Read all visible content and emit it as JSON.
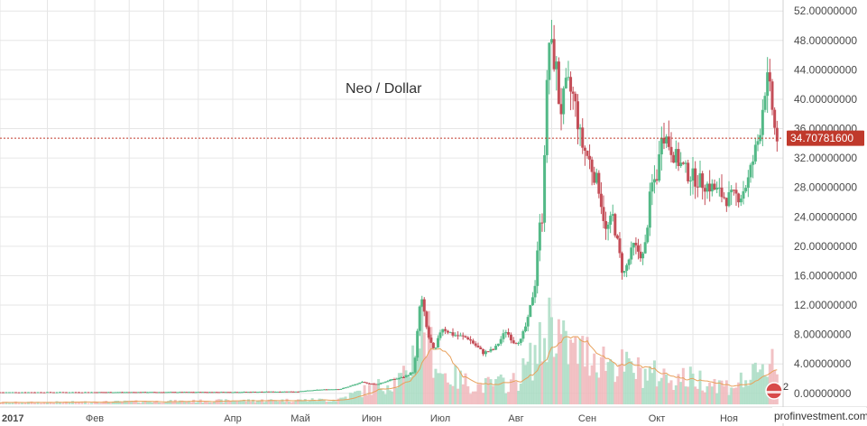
{
  "chart_data": {
    "type": "candlestick",
    "title": "Neo / Dollar",
    "y_axis": {
      "side": "right",
      "range": [
        -1.5,
        53.5
      ],
      "ticks": [
        "52.00000000",
        "48.00000000",
        "44.00000000",
        "40.00000000",
        "36.00000000",
        "32.00000000",
        "28.00000000",
        "24.00000000",
        "20.00000000",
        "16.00000000",
        "12.00000000",
        "8.00000000",
        "4.00000000",
        "0.00000000"
      ],
      "tick_values": [
        52,
        48,
        44,
        40,
        36,
        32,
        28,
        24,
        20,
        16,
        12,
        8,
        4,
        0
      ]
    },
    "x_axis": {
      "ticks": [
        {
          "label": "2017",
          "month": 0.0,
          "bold": true
        },
        {
          "label": "Фев",
          "month": 1.0
        },
        {
          "label": "Апр",
          "month": 3.0
        },
        {
          "label": "Май",
          "month": 4.0
        },
        {
          "label": "Июн",
          "month": 5.0
        },
        {
          "label": "Июл",
          "month": 6.0
        },
        {
          "label": "Авг",
          "month": 7.0
        },
        {
          "label": "Сен",
          "month": 8.0
        },
        {
          "label": "Окт",
          "month": 9.0
        },
        {
          "label": "Ноя",
          "month": 10.0
        }
      ],
      "range_months": [
        0,
        10.75
      ]
    },
    "current_price": {
      "value": 34.707816,
      "label": "34.70781600",
      "color": "#c0392b"
    },
    "grid": true,
    "colors": {
      "up": "#53b987",
      "down": "#c44e58",
      "vol_up": "#a9dcc3",
      "vol_down": "#f0b7bb",
      "ma": "#e8a05a",
      "grid": "#e6e6e6"
    },
    "price_keypoints": [
      [
        0.0,
        0.15
      ],
      [
        1.0,
        0.16
      ],
      [
        2.0,
        0.17
      ],
      [
        3.0,
        0.18
      ],
      [
        4.0,
        0.25
      ],
      [
        4.3,
        0.5
      ],
      [
        4.6,
        0.6
      ],
      [
        4.9,
        1.5
      ],
      [
        5.1,
        1.2
      ],
      [
        5.3,
        1.8
      ],
      [
        5.5,
        2.2
      ],
      [
        5.65,
        3.0
      ],
      [
        5.75,
        13.5
      ],
      [
        5.85,
        8.0
      ],
      [
        5.95,
        5.5
      ],
      [
        6.05,
        9.0
      ],
      [
        6.2,
        8.0
      ],
      [
        6.4,
        7.5
      ],
      [
        6.6,
        5.5
      ],
      [
        6.75,
        6.0
      ],
      [
        6.9,
        8.5
      ],
      [
        7.0,
        7.0
      ],
      [
        7.1,
        7.2
      ],
      [
        7.2,
        10.0
      ],
      [
        7.3,
        15.0
      ],
      [
        7.35,
        22.0
      ],
      [
        7.4,
        24.0
      ],
      [
        7.45,
        38.0
      ],
      [
        7.5,
        48.0
      ],
      [
        7.6,
        44.0
      ],
      [
        7.65,
        38.0
      ],
      [
        7.75,
        42.0
      ],
      [
        7.85,
        40.0
      ],
      [
        7.95,
        34.0
      ],
      [
        8.05,
        32.0
      ],
      [
        8.2,
        28.0
      ],
      [
        8.3,
        22.0
      ],
      [
        8.4,
        24.0
      ],
      [
        8.55,
        16.0
      ],
      [
        8.7,
        20.0
      ],
      [
        8.85,
        18.5
      ],
      [
        8.95,
        28.0
      ],
      [
        9.05,
        30.0
      ],
      [
        9.1,
        36.0
      ],
      [
        9.2,
        34.0
      ],
      [
        9.3,
        32.0
      ],
      [
        9.45,
        30.0
      ],
      [
        9.6,
        29.0
      ],
      [
        9.8,
        28.0
      ],
      [
        10.0,
        26.5
      ],
      [
        10.2,
        27.0
      ],
      [
        10.3,
        29.0
      ],
      [
        10.45,
        35.0
      ],
      [
        10.55,
        43.0
      ],
      [
        10.62,
        40.0
      ],
      [
        10.68,
        34.7
      ]
    ],
    "volume_keypoints": [
      [
        0.0,
        0.02
      ],
      [
        4.5,
        0.05
      ],
      [
        5.5,
        0.3
      ],
      [
        5.75,
        0.9
      ],
      [
        6.0,
        0.35
      ],
      [
        6.5,
        0.2
      ],
      [
        7.0,
        0.25
      ],
      [
        7.4,
        0.7
      ],
      [
        7.5,
        1.0
      ],
      [
        7.7,
        0.6
      ],
      [
        8.1,
        0.55
      ],
      [
        8.4,
        0.45
      ],
      [
        8.8,
        0.35
      ],
      [
        9.2,
        0.3
      ],
      [
        9.6,
        0.28
      ],
      [
        10.0,
        0.2
      ],
      [
        10.5,
        0.35
      ],
      [
        10.6,
        0.6
      ],
      [
        10.7,
        0.3
      ]
    ],
    "watermark_url": "profinvestment.com",
    "badge_count": "2"
  }
}
